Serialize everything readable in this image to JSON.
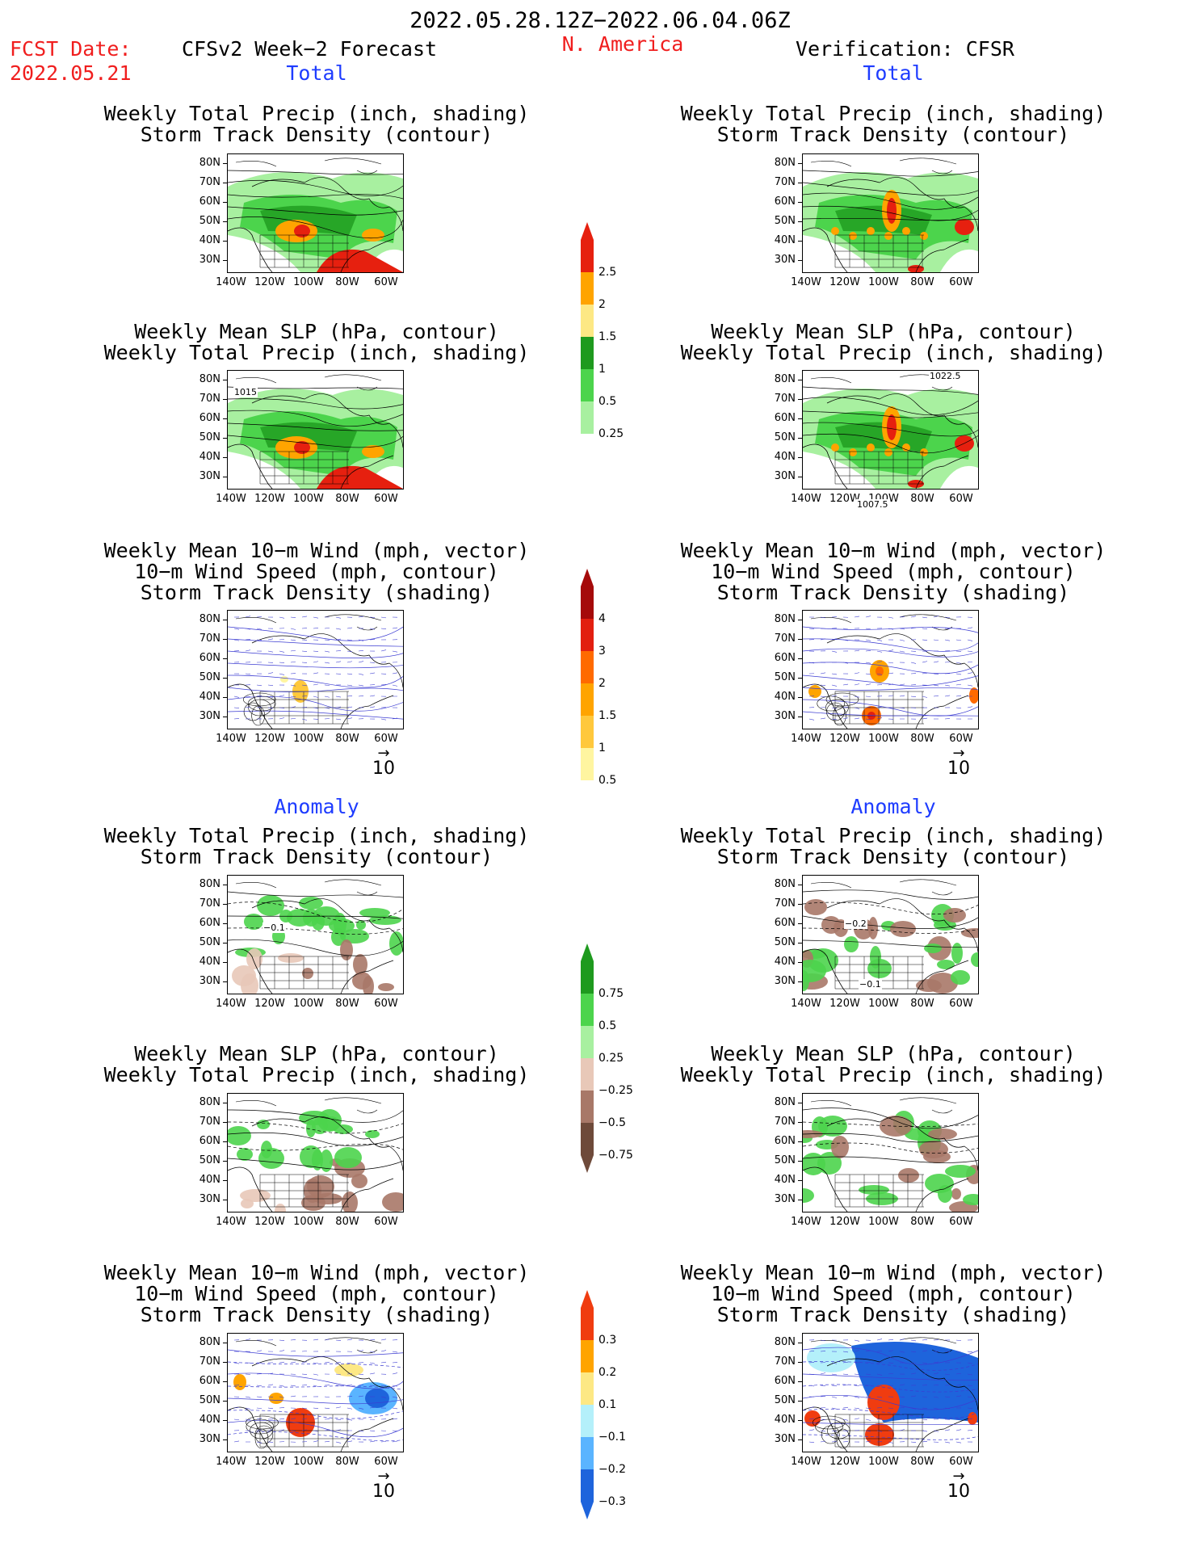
{
  "header": {
    "period": "2022.05.28.12Z−2022.06.04.06Z",
    "fcst_label": "FCST Date:",
    "fcst_date": "2022.05.21",
    "forecast_title": "CFSv2 Week−2 Forecast",
    "region": "N. America",
    "verification_title": "Verification: CFSR"
  },
  "section_labels": {
    "total": "Total",
    "anomaly": "Anomaly"
  },
  "panel_titles": {
    "precip_storm": [
      "Weekly Total Precip (inch, shading)",
      "Storm Track Density (contour)"
    ],
    "slp_precip": [
      "Weekly Mean SLP (hPa, contour)",
      "Weekly Total Precip (inch, shading)"
    ],
    "wind_storm": [
      "Weekly Mean 10−m Wind (mph, vector)",
      "10−m Wind Speed (mph, contour)",
      "Storm Track Density (shading)"
    ]
  },
  "axes": {
    "lat_labels": [
      "80N",
      "70N",
      "60N",
      "50N",
      "40N",
      "30N"
    ],
    "lon_labels": [
      "140W",
      "120W",
      "100W",
      "80W",
      "60W"
    ]
  },
  "vector_reference": "10",
  "contour_labels": {
    "slp_total_forecast": "1015",
    "slp_total_verif_high": "1022.5",
    "slp_total_verif_low": "1007.5",
    "anom_precip_forecast": "−0.1",
    "anom_precip_verif": "−0.2",
    "anom_precip_verif_low": "−0.1"
  },
  "colorbars": {
    "total_precip": {
      "labels": [
        "2.5",
        "2",
        "1.5",
        "1",
        "0.5",
        "0.25"
      ],
      "colors": [
        "#e6200f",
        "#ffa400",
        "#fde884",
        "#1e9a1e",
        "#4cd44c",
        "#a8f0a0"
      ]
    },
    "total_storm": {
      "labels": [
        "4",
        "3",
        "2",
        "1.5",
        "1",
        "0.5"
      ],
      "colors": [
        "#a50a0a",
        "#e21f10",
        "#ff6a00",
        "#ffa400",
        "#ffc83c",
        "#fff5a0"
      ]
    },
    "anom_precip": {
      "labels": [
        "0.75",
        "0.5",
        "0.25",
        "−0.25",
        "−0.5",
        "−0.75"
      ],
      "colors": [
        "#1e9a1e",
        "#4cd44c",
        "#a8f0a0",
        "#e8c8b8",
        "#a87868",
        "#6e4a3a"
      ]
    },
    "anom_storm": {
      "labels": [
        "0.3",
        "0.2",
        "0.1",
        "−0.1",
        "−0.2",
        "−0.3"
      ],
      "colors": [
        "#f03c10",
        "#ffa400",
        "#fde884",
        "#b4f0fa",
        "#5ab4ff",
        "#1e64dc"
      ]
    }
  },
  "colors": {
    "header_red": "#f01e1e",
    "section_blue": "#1e3cff"
  }
}
